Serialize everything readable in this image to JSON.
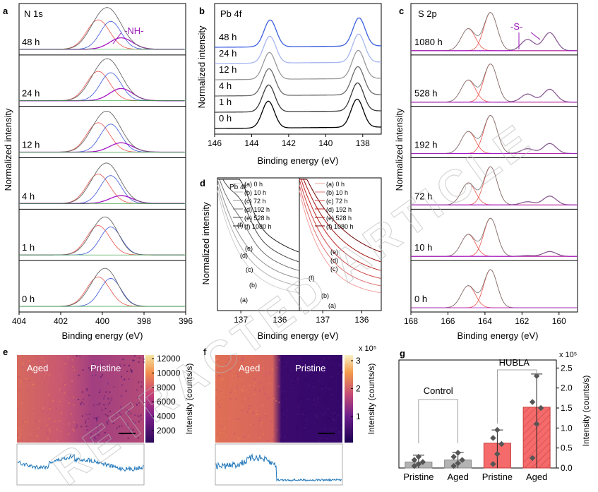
{
  "watermark": "RETRACTED ARTICLE",
  "panels": {
    "a": {
      "letter": "a",
      "title": "N 1s",
      "annotation": "-NH-",
      "xlabel": "Binding energy (eV)",
      "ylabel": "Normalized intensity",
      "xticks": [
        "404",
        "402",
        "400",
        "398",
        "396"
      ],
      "traces": [
        "48 h",
        "24 h",
        "12 h",
        "4 h",
        "1 h",
        "0 h"
      ]
    },
    "b": {
      "letter": "b",
      "title": "Pb 4f",
      "xlabel": "Binding energy (eV)",
      "ylabel": "Normalized intensity",
      "xticks": [
        "146",
        "144",
        "142",
        "140",
        "138"
      ],
      "traces": [
        "48 h",
        "24 h",
        "12 h",
        "4 h",
        "1 h",
        "0 h"
      ]
    },
    "c": {
      "letter": "c",
      "title": "S 2p",
      "annotation": "-S-",
      "xlabel": "Binding energy (eV)",
      "ylabel": "Normalized intensity",
      "xticks": [
        "168",
        "166",
        "164",
        "162",
        "160"
      ],
      "traces": [
        "1080 h",
        "528 h",
        "192 h",
        "72 h",
        "10 h",
        "0 h"
      ]
    },
    "d": {
      "letter": "d",
      "title": "Pb 4f",
      "xlabel": "Binding energy (eV)",
      "ylabel": "Normalized intensity",
      "xticks_left": [
        "137",
        "136"
      ],
      "xticks_right": [
        "137",
        "136"
      ],
      "legend": [
        "(a) 0 h",
        "(b) 10 h",
        "(c) 72 h",
        "(d) 192 h",
        "(e) 528 h",
        "(f) 1080 h"
      ],
      "curve_labels": [
        "(a)",
        "(b)",
        "(c)",
        "(d)",
        "(e)",
        "(f)"
      ]
    },
    "e": {
      "letter": "e",
      "label_left": "Aged",
      "label_right": "Pristine",
      "colorbar_label": "Intensity (counts/s)",
      "colorbar_ticks": [
        "12000",
        "10000",
        "8000",
        "6000",
        "4000",
        "2000"
      ]
    },
    "f": {
      "letter": "f",
      "label_left": "Aged",
      "label_right": "Pristine",
      "colorbar_label": "Intensity (counts/s)",
      "colorbar_multiplier": "x 10⁵",
      "colorbar_ticks": [
        "3",
        "2",
        "1"
      ]
    },
    "g": {
      "letter": "g",
      "multiplier": "x 10⁵",
      "ylabel": "Intensity (counts/s)",
      "yticks": [
        "2.5",
        "2.0",
        "1.5",
        "1.0",
        "0.5",
        "0.0"
      ],
      "group_labels": [
        "Control",
        "HUBLA"
      ]
    }
  },
  "chart_data": [
    {
      "panel": "a",
      "type": "line",
      "title": "N 1s",
      "xlabel": "Binding energy (eV)",
      "ylabel": "Normalized intensity",
      "xlim": [
        404,
        396
      ],
      "series": [
        {
          "name": "0 h",
          "main_peak_eV": 400.0
        },
        {
          "name": "1 h",
          "main_peak_eV": 400.0
        },
        {
          "name": "4 h",
          "main_peak_eV": 400.0
        },
        {
          "name": "12 h",
          "main_peak_eV": 400.0
        },
        {
          "name": "24 h",
          "main_peak_eV": 400.0
        },
        {
          "name": "48 h",
          "main_peak_eV": 400.0
        }
      ]
    },
    {
      "panel": "b",
      "type": "line",
      "title": "Pb 4f",
      "xlabel": "Binding energy (eV)",
      "ylabel": "Normalized intensity",
      "xlim": [
        146,
        137
      ],
      "series": [
        {
          "name": "0 h",
          "peaks_eV": [
            143.0,
            138.2
          ]
        },
        {
          "name": "1 h",
          "peaks_eV": [
            143.1,
            138.3
          ]
        },
        {
          "name": "4 h",
          "peaks_eV": [
            143.1,
            138.3
          ]
        },
        {
          "name": "12 h",
          "peaks_eV": [
            143.1,
            138.3
          ]
        },
        {
          "name": "24 h",
          "peaks_eV": [
            143.2,
            138.4
          ]
        },
        {
          "name": "48 h",
          "peaks_eV": [
            143.2,
            138.4
          ]
        }
      ]
    },
    {
      "panel": "c",
      "type": "line",
      "title": "S 2p",
      "xlabel": "Binding energy (eV)",
      "ylabel": "Normalized intensity",
      "xlim": [
        168,
        159
      ],
      "series": [
        {
          "name": "0 h",
          "peaks_eV": [
            164.9,
            163.7
          ]
        },
        {
          "name": "10 h",
          "peaks_eV": [
            164.9,
            163.7,
            160.3
          ]
        },
        {
          "name": "72 h",
          "peaks_eV": [
            164.9,
            163.7,
            161.6,
            160.4
          ]
        },
        {
          "name": "192 h",
          "peaks_eV": [
            164.9,
            163.7,
            161.6,
            160.4
          ]
        },
        {
          "name": "528 h",
          "peaks_eV": [
            164.9,
            163.7,
            161.7,
            160.5
          ]
        },
        {
          "name": "1080 h",
          "peaks_eV": [
            164.9,
            163.7,
            161.7,
            160.5
          ]
        }
      ]
    },
    {
      "panel": "d",
      "type": "line",
      "title": "Pb 4f",
      "xlabel": "Binding energy (eV)",
      "ylabel": "Normalized intensity",
      "xlim": [
        137.6,
        135.5
      ],
      "series": [
        {
          "name": "(a) 0 h"
        },
        {
          "name": "(b) 10 h"
        },
        {
          "name": "(c) 72 h"
        },
        {
          "name": "(d) 192 h"
        },
        {
          "name": "(e) 528 h"
        },
        {
          "name": "(f) 1080 h"
        }
      ]
    },
    {
      "panel": "e",
      "type": "heatmap",
      "colorbar_label": "Intensity (counts/s)",
      "colorbar_range": [
        1000,
        12500
      ]
    },
    {
      "panel": "f",
      "type": "heatmap",
      "colorbar_label": "Intensity (counts/s)",
      "colorbar_range": [
        0,
        3.2
      ],
      "colorbar_multiplier": "x 10⁵"
    },
    {
      "panel": "g",
      "type": "bar",
      "ylabel": "Intensity (counts/s)",
      "multiplier": "x 10⁵",
      "categories": [
        "Pristine",
        "Aged",
        "Pristine",
        "Aged"
      ],
      "groups": [
        "Control",
        "Control",
        "HUBLA",
        "HUBLA"
      ],
      "values": [
        0.15,
        0.2,
        0.62,
        1.52
      ],
      "errors": [
        0.17,
        0.19,
        0.33,
        0.83
      ],
      "points": [
        [
          0.05,
          0.1,
          0.15,
          0.2,
          0.28
        ],
        [
          0.05,
          0.12,
          0.2,
          0.28,
          0.38
        ],
        [
          0.1,
          0.35,
          0.6,
          0.75,
          0.95
        ],
        [
          0.25,
          1.1,
          1.5,
          1.65,
          2.3
        ]
      ],
      "colors": [
        "#b3b3b3",
        "#b3b3b3",
        "#f56b6b",
        "#f56b6b"
      ],
      "ylim": [
        0,
        2.7
      ]
    }
  ]
}
